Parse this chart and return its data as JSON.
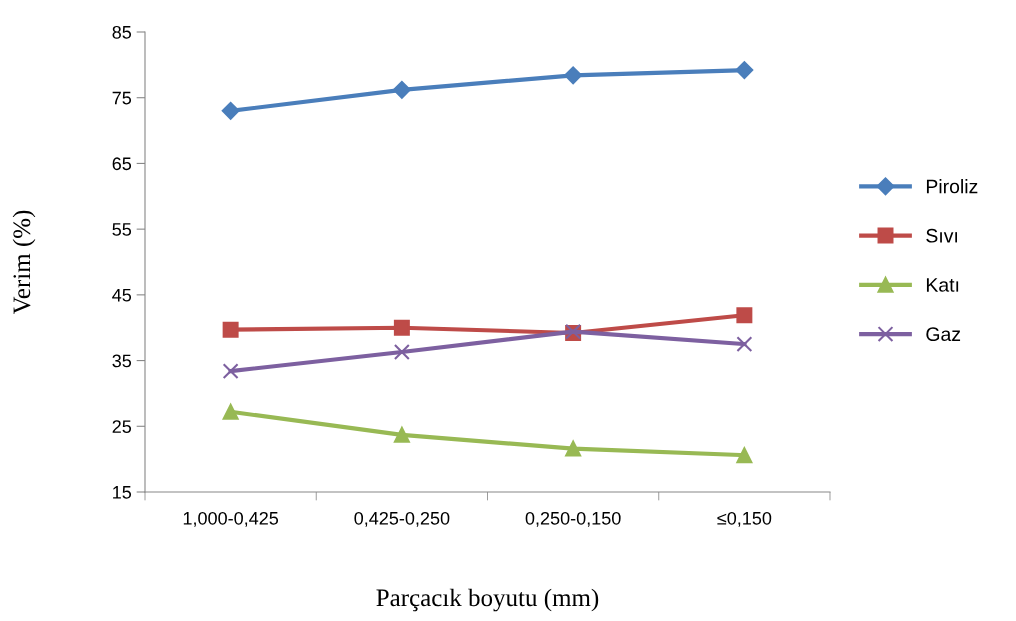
{
  "chart_data": {
    "type": "line",
    "xlabel": "Parçacık boyutu (mm)",
    "ylabel": "Verim (%)",
    "categories": [
      "1,000-0,425",
      "0,425-0,250",
      "0,250-0,150",
      "≤0,150"
    ],
    "series": [
      {
        "name": "Piroliz",
        "color": "#4a7ebb",
        "marker": "diamond",
        "values": [
          73.0,
          76.2,
          78.4,
          79.2
        ]
      },
      {
        "name": "Sıvı",
        "color": "#be4b48",
        "marker": "square",
        "values": [
          39.7,
          40.0,
          39.2,
          41.9
        ]
      },
      {
        "name": "Katı",
        "color": "#98b954",
        "marker": "triangle",
        "values": [
          27.2,
          23.7,
          21.6,
          20.6
        ]
      },
      {
        "name": "Gaz",
        "color": "#7d60a0",
        "marker": "cross",
        "values": [
          33.4,
          36.3,
          39.4,
          37.5
        ]
      }
    ],
    "ylim": [
      15,
      85
    ],
    "yticks": [
      15,
      25,
      35,
      45,
      55,
      65,
      75,
      85
    ],
    "grid": false,
    "legend": "right"
  }
}
